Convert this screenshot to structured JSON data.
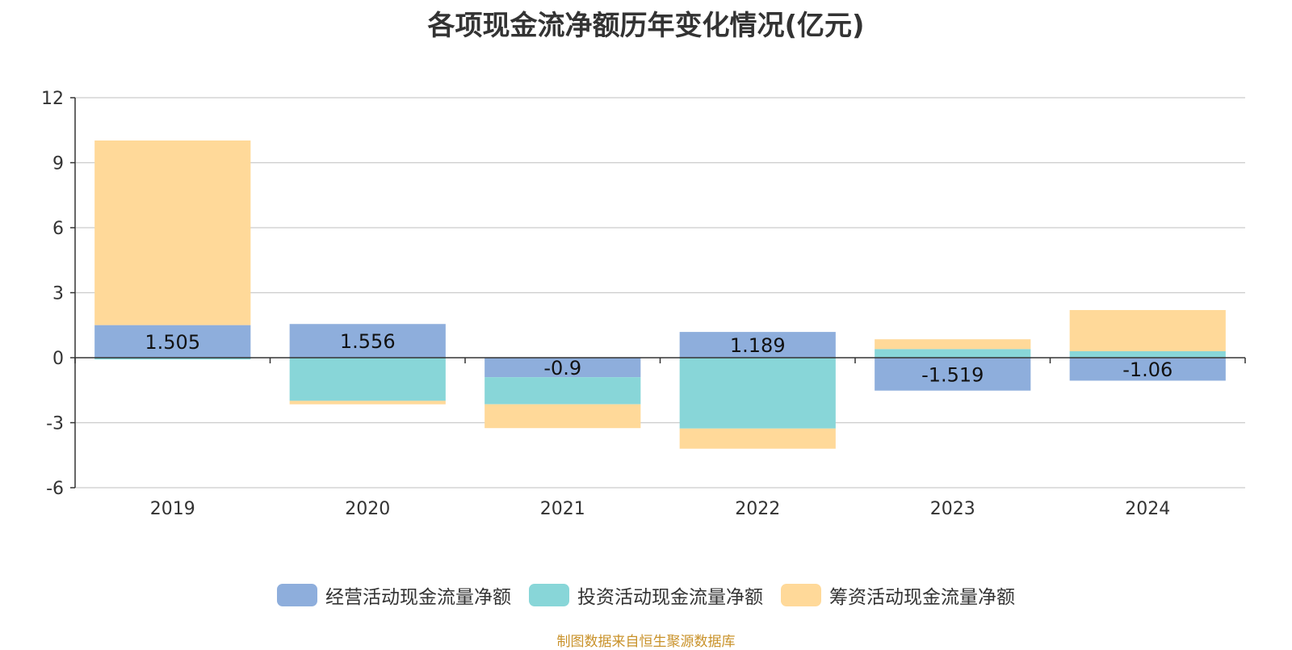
{
  "chart_data": {
    "type": "bar",
    "stacked": true,
    "title": "各项现金流净额历年变化情况(亿元)",
    "categories": [
      "2019",
      "2020",
      "2021",
      "2022",
      "2023",
      "2024"
    ],
    "ylim": [
      -6,
      12
    ],
    "yticks": [
      12,
      9,
      6,
      3,
      0,
      -3,
      -6
    ],
    "grid": true,
    "legend_position": "bottom",
    "series": [
      {
        "name": "经营活动现金流量净额",
        "color": "#8eaedc",
        "values": [
          1.505,
          1.556,
          -0.9,
          1.189,
          -1.519,
          -1.06
        ],
        "labels": [
          "1.505",
          "1.556",
          "-0.9",
          "1.189",
          "-1.519",
          "-1.06"
        ]
      },
      {
        "name": "投资活动现金流量净额",
        "color": "#88d6d8",
        "values": [
          -0.08,
          -1.99,
          -1.25,
          -3.27,
          0.4,
          0.3
        ]
      },
      {
        "name": "筹资活动现金流量净额",
        "color": "#ffd999",
        "values": [
          8.52,
          -0.16,
          -1.1,
          -0.93,
          0.45,
          1.9
        ]
      }
    ]
  },
  "source_note": "制图数据来自恒生聚源数据库"
}
